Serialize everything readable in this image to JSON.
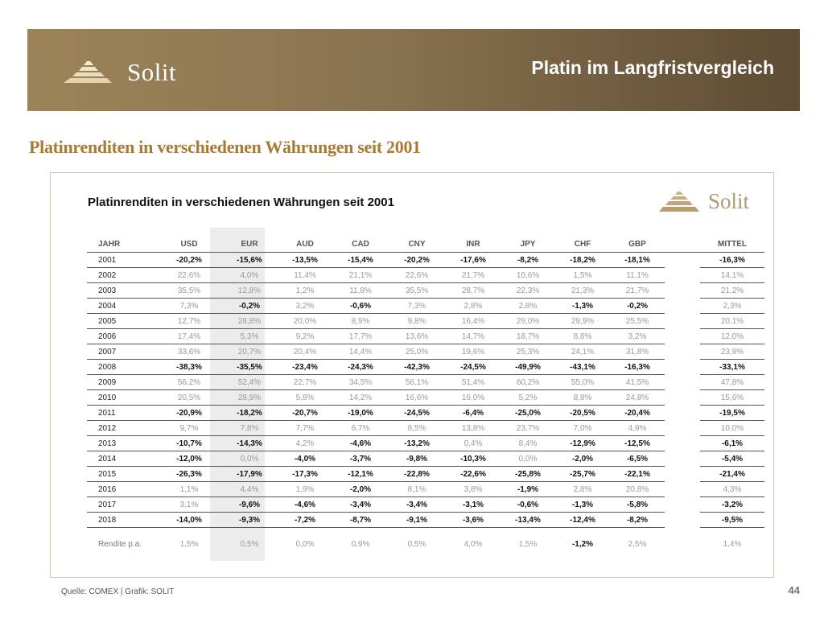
{
  "banner": {
    "logo_text": "Solit",
    "title": "Platin im Langfristvergleich"
  },
  "section_title": "Platinrenditen in verschiedenen Währungen seit 2001",
  "chart": {
    "title": "Platinrenditen in verschiedenen Währungen seit 2001",
    "logo_text": "Solit"
  },
  "chart_data": {
    "type": "table",
    "title": "Platinrenditen in verschiedenen Währungen seit 2001",
    "columns": [
      "JAHR",
      "USD",
      "EUR",
      "AUD",
      "CAD",
      "CNY",
      "INR",
      "JPY",
      "CHF",
      "GBP",
      "MITTEL"
    ],
    "rows": [
      [
        "2001",
        "-20,2%",
        "-15,6%",
        "-13,5%",
        "-15,4%",
        "-20,2%",
        "-17,6%",
        "-8,2%",
        "-18,2%",
        "-18,1%",
        "-16,3%"
      ],
      [
        "2002",
        "22,6%",
        "4,0%",
        "11,4%",
        "21,1%",
        "22,6%",
        "21,7%",
        "10,6%",
        "1,5%",
        "11,1%",
        "14,1%"
      ],
      [
        "2003",
        "35,5%",
        "12,8%",
        "1,2%",
        "11,8%",
        "35,5%",
        "28,7%",
        "22,3%",
        "21,3%",
        "21,7%",
        "21,2%"
      ],
      [
        "2004",
        "7,3%",
        "-0,2%",
        "3,2%",
        "-0,6%",
        "7,3%",
        "2,8%",
        "2,8%",
        "-1,3%",
        "-0,2%",
        "2,3%"
      ],
      [
        "2005",
        "12,7%",
        "28,8%",
        "20,0%",
        "8,9%",
        "9,8%",
        "16,4%",
        "29,0%",
        "29,9%",
        "25,5%",
        "20,1%"
      ],
      [
        "2006",
        "17,4%",
        "5,3%",
        "9,2%",
        "17,7%",
        "13,6%",
        "14,7%",
        "18,7%",
        "8,8%",
        "3,2%",
        "12,0%"
      ],
      [
        "2007",
        "33,6%",
        "20,7%",
        "20,4%",
        "14,4%",
        "25,0%",
        "19,6%",
        "25,3%",
        "24,1%",
        "31,8%",
        "23,9%"
      ],
      [
        "2008",
        "-38,3%",
        "-35,5%",
        "-23,4%",
        "-24,3%",
        "-42,3%",
        "-24,5%",
        "-49,9%",
        "-43,1%",
        "-16,3%",
        "-33,1%"
      ],
      [
        "2009",
        "56,2%",
        "52,4%",
        "22,7%",
        "34,5%",
        "56,1%",
        "51,4%",
        "60,2%",
        "55,0%",
        "41,5%",
        "47,8%"
      ],
      [
        "2010",
        "20,5%",
        "28,9%",
        "5,8%",
        "14,2%",
        "16,6%",
        "16,0%",
        "5,2%",
        "8,8%",
        "24,8%",
        "15,6%"
      ],
      [
        "2011",
        "-20,9%",
        "-18,2%",
        "-20,7%",
        "-19,0%",
        "-24,5%",
        "-6,4%",
        "-25,0%",
        "-20,5%",
        "-20,4%",
        "-19,5%"
      ],
      [
        "2012",
        "9,7%",
        "7,8%",
        "7,7%",
        "6,7%",
        "8,5%",
        "13,8%",
        "23,7%",
        "7,0%",
        "4,9%",
        "10,0%"
      ],
      [
        "2013",
        "-10,7%",
        "-14,3%",
        "4,2%",
        "-4,6%",
        "-13,2%",
        "0,4%",
        "8,4%",
        "-12,9%",
        "-12,5%",
        "-6,1%"
      ],
      [
        "2014",
        "-12,0%",
        "0,0%",
        "-4,0%",
        "-3,7%",
        "-9,8%",
        "-10,3%",
        "0,0%",
        "-2,0%",
        "-6,5%",
        "-5,4%"
      ],
      [
        "2015",
        "-26,3%",
        "-17,9%",
        "-17,3%",
        "-12,1%",
        "-22,8%",
        "-22,6%",
        "-25,8%",
        "-25,7%",
        "-22,1%",
        "-21,4%"
      ],
      [
        "2016",
        "1,1%",
        "4,4%",
        "1,9%",
        "-2,0%",
        "8,1%",
        "3,8%",
        "-1,9%",
        "2,8%",
        "20,8%",
        "4,3%"
      ],
      [
        "2017",
        "3,1%",
        "-9,6%",
        "-4,6%",
        "-3,4%",
        "-3,4%",
        "-3,1%",
        "-0,6%",
        "-1,3%",
        "-5,8%",
        "-3,2%"
      ],
      [
        "2018",
        "-14,0%",
        "-9,3%",
        "-7,2%",
        "-8,7%",
        "-9,1%",
        "-3,6%",
        "-13,4%",
        "-12,4%",
        "-8,2%",
        "-9,5%"
      ]
    ],
    "summary_row": [
      "Rendite p.a.",
      "1,5%",
      "0,5%",
      "0,0%",
      "0,9%",
      "0,5%",
      "4,0%",
      "1,5%",
      "-1,2%",
      "2,5%",
      "1,4%"
    ]
  },
  "footer": {
    "source": "Quelle: COMEX | Grafik: SOLIT",
    "page_number": "44"
  },
  "colors": {
    "banner_light": "#9c8358",
    "banner_dark": "#5e4c34",
    "section_title": "#a87a33",
    "positive_value": "#999999",
    "negative_value": "#111111",
    "eur_column_shade": "#ececec"
  },
  "icons": {
    "banner_logo": "solit-pyramid-logo",
    "chart_logo": "solit-pyramid-logo"
  }
}
